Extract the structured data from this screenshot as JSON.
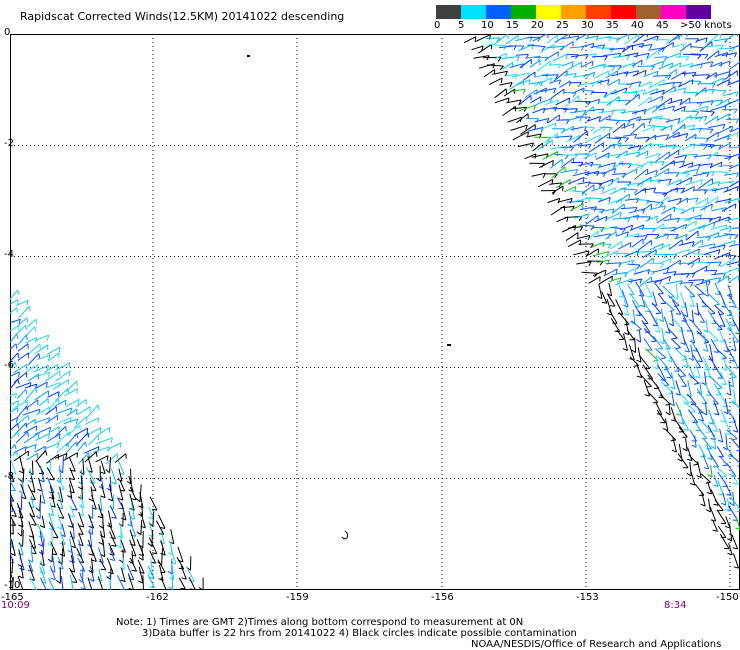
{
  "title": "Rapidscat Corrected Winds(12.5KM) 20141022 descending",
  "speed_scale": {
    "labels": [
      "0",
      "5",
      "10",
      "15",
      "20",
      "25",
      "30",
      "35",
      "40",
      "45",
      ">50 knots"
    ],
    "colors": [
      "#404040",
      "#808080",
      "#00e0ff",
      "#00b0ff",
      "#0040ff",
      "#00c000",
      "#e0e000",
      "#ffa000",
      "#ff5000",
      "#ff0000",
      "#ff00a0",
      "#a06040",
      "#a000a0",
      "#500080"
    ]
  },
  "lat_labels": [
    "0",
    "-2",
    "-4",
    "-6",
    "-8",
    "-10"
  ],
  "lon_labels": [
    "-165",
    "-162",
    "-159",
    "-156",
    "-153",
    "-150"
  ],
  "time_labels": {
    "left": "10:09",
    "right": "8:34"
  },
  "notes": [
    "Note: 1) Times are GMT 2)Times along bottom correspond to measurement at 0N",
    "3)Data buffer is 22 hrs from 20141022 4) Black circles indicate possible contamination"
  ],
  "credit": "NOAA/NESDIS/Office of Research and Applications",
  "map": {
    "lat_range": [
      -10,
      0
    ],
    "lon_range": [
      -165,
      -150
    ],
    "swaths": [
      {
        "name": "east-swath",
        "dominant_speed": "5-15 knots"
      },
      {
        "name": "west-swath",
        "dominant_speed": "0-10 knots"
      }
    ]
  }
}
